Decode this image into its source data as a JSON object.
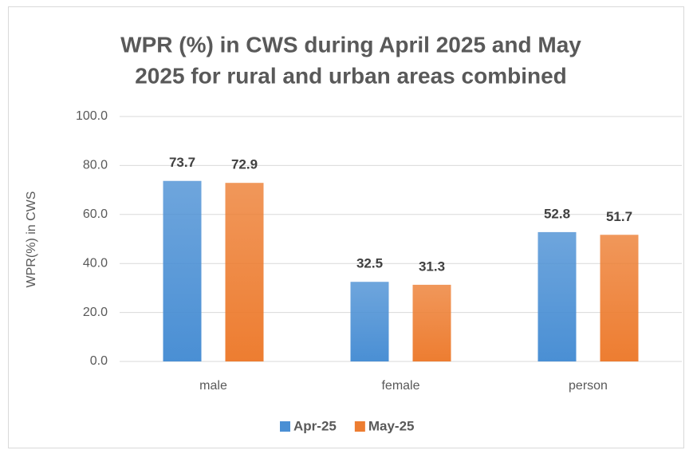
{
  "chart_data": {
    "type": "bar",
    "title": [
      "WPR (%) in CWS during April 2025 and May",
      "2025 for rural and urban areas combined"
    ],
    "y_label": "WPR(%) in CWS",
    "categories": [
      "male",
      "female",
      "person"
    ],
    "series": [
      {
        "name": "Apr-25",
        "color": "#4a8fd4",
        "values": [
          73.7,
          32.5,
          52.8
        ]
      },
      {
        "name": "May-25",
        "color": "#ed7d31",
        "values": [
          72.9,
          31.3,
          51.7
        ]
      }
    ],
    "ylim": [
      0,
      100
    ],
    "yticks": [
      {
        "value": 0,
        "label": "0.0"
      },
      {
        "value": 20,
        "label": "20.0"
      },
      {
        "value": 40,
        "label": "40.0"
      },
      {
        "value": 60,
        "label": "60.0"
      },
      {
        "value": 80,
        "label": "80.0"
      },
      {
        "value": 100,
        "label": "100.0"
      }
    ],
    "grid": true,
    "legend": "bottom"
  }
}
